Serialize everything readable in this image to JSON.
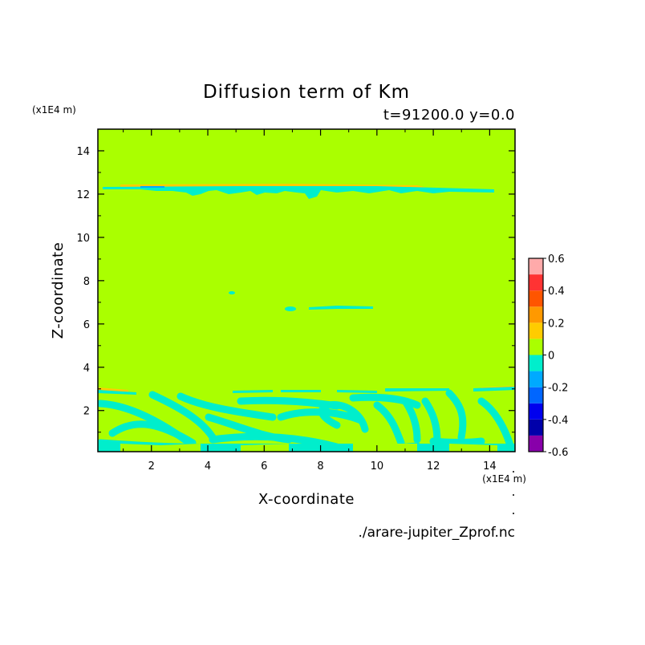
{
  "chart_data": {
    "type": "heatmap",
    "title": "Diffusion term of Km",
    "subtitle": "t=91200.0 y=0.0",
    "xlabel": "X-coordinate",
    "ylabel": "Z-coordinate",
    "x_unit": "(x1E4 m)",
    "y_unit": "(x1E4 m)",
    "xlim": [
      0.1,
      14.9
    ],
    "ylim": [
      0.1,
      15
    ],
    "x_ticks": [
      2,
      4,
      6,
      8,
      10,
      12,
      14
    ],
    "y_ticks": [
      2,
      4,
      6,
      8,
      10,
      12,
      14
    ],
    "colorbar": {
      "levels": [
        -0.6,
        -0.5,
        -0.4,
        -0.3,
        -0.2,
        -0.1,
        0,
        0.1,
        0.2,
        0.3,
        0.4,
        0.5,
        0.6
      ],
      "tick_labels": [
        "-0.6",
        "-0.4",
        "-0.2",
        "0",
        "0.2",
        "0.4",
        "0.6"
      ],
      "tick_values": [
        -0.6,
        -0.4,
        -0.2,
        0,
        0.2,
        0.4,
        0.6
      ],
      "colors": [
        "#8800aa",
        "#0000aa",
        "#0000ee",
        "#0066ff",
        "#00aaff",
        "#00eecc",
        "#aaff00",
        "#ffcc00",
        "#ff9900",
        "#ff5500",
        "#ff3333",
        "#ffaaaa"
      ]
    },
    "background_value_band": "0 to 0.1",
    "source_file": "./arare-jupiter_Zprof.nc",
    "features": [
      {
        "name": "upper-layer",
        "z_approx": 12.1,
        "x_range": [
          0.3,
          14.3
        ],
        "band": "-0.1 to 0"
      },
      {
        "name": "mid-streak",
        "z_approx": 6.65,
        "x_range": [
          6.8,
          9.8
        ],
        "band": "-0.1 to 0"
      },
      {
        "name": "lower-mixing-layer",
        "z_range": [
          0.1,
          3.0
        ],
        "band": "-0.1 to 0"
      }
    ]
  },
  "colors": {
    "background": "#ffffff",
    "field": "#aaff00",
    "negative_small": "#00eecc",
    "negative_mid": "#00aaff",
    "positive_small": "#ffcc00",
    "axis": "#000000"
  }
}
